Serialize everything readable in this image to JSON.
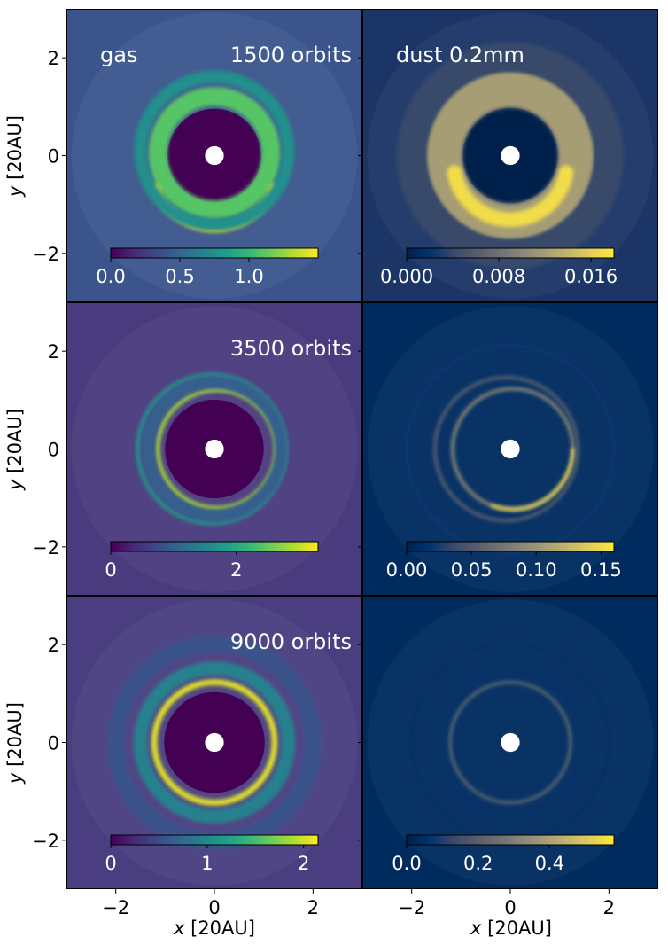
{
  "figure": {
    "xlabel_var": "x",
    "xlabel_unit": " [20AU]",
    "ylabel_var": "y",
    "ylabel_unit": " [20AU]",
    "xticks": [
      "−2",
      "0",
      "2"
    ],
    "yticks": [
      "2",
      "0",
      "−2"
    ]
  },
  "chart_data": [
    {
      "type": "heatmap",
      "panel": "gas-1500",
      "label": "gas",
      "time_label": "1500 orbits",
      "xlim": [
        -3,
        3
      ],
      "ylim": [
        -3,
        3
      ],
      "colormap": "viridis",
      "background": "#3b558c",
      "clim": [
        0,
        1.5
      ],
      "colorbar_ticks": [
        {
          "v": 0.0,
          "t": "0.0"
        },
        {
          "v": 0.5,
          "t": "0.5"
        },
        {
          "v": 1.0,
          "t": "1.0"
        }
      ],
      "features": [
        {
          "kind": "disk",
          "r": 0.95,
          "value": 0.0
        },
        {
          "kind": "ring",
          "r": 1.15,
          "width": 0.38,
          "value": 1.1,
          "cx": 0.0,
          "cy": 0.05
        },
        {
          "kind": "ring",
          "r": 1.28,
          "width": 0.16,
          "value": 1.45,
          "cx": 0.0,
          "cy": -0.2,
          "arc": [
            20,
            160
          ]
        },
        {
          "kind": "ring",
          "r": 1.5,
          "width": 0.25,
          "value": 0.75,
          "cx": 0.0,
          "cy": 0.1
        },
        {
          "kind": "hole",
          "r": 0.19
        }
      ]
    },
    {
      "type": "heatmap",
      "panel": "dust-1500",
      "label": "dust 0.2mm",
      "time_label": "",
      "xlim": [
        -3,
        3
      ],
      "ylim": [
        -3,
        3
      ],
      "colormap": "cividis",
      "background": "#1b3566",
      "clim": [
        0,
        0.018
      ],
      "colorbar_ticks": [
        {
          "v": 0.0,
          "t": "0.000"
        },
        {
          "v": 0.008,
          "t": "0.008"
        },
        {
          "v": 0.016,
          "t": "0.016"
        }
      ],
      "features": [
        {
          "kind": "disk",
          "r": 0.97,
          "value": 0.0
        },
        {
          "kind": "ring",
          "r": 1.35,
          "width": 0.75,
          "value": 0.012,
          "cx": 0.0,
          "cy": 0.0
        },
        {
          "kind": "ring",
          "r": 1.15,
          "width": 0.3,
          "value": 0.017,
          "cx": 0.0,
          "cy": -0.15,
          "arc": [
            10,
            170
          ]
        },
        {
          "kind": "ring",
          "r": 2.0,
          "width": 0.6,
          "value": 0.004,
          "cx": 0.0,
          "cy": 0.0
        },
        {
          "kind": "hole",
          "r": 0.19
        }
      ]
    },
    {
      "type": "heatmap",
      "panel": "gas-3500",
      "label": "",
      "time_label": "3500 orbits",
      "xlim": [
        -3,
        3
      ],
      "ylim": [
        -3,
        3
      ],
      "colormap": "viridis",
      "background": "#4a3a7e",
      "clim": [
        0,
        3.3
      ],
      "colorbar_ticks": [
        {
          "v": 0,
          "t": "0"
        },
        {
          "v": 2,
          "t": "2"
        }
      ],
      "features": [
        {
          "kind": "disk",
          "r": 1.0,
          "value": 0.0
        },
        {
          "kind": "ring",
          "r": 1.2,
          "width": 0.09,
          "value": 2.8,
          "cx": 0.05,
          "cy": 0.0
        },
        {
          "kind": "ring",
          "r": 1.5,
          "width": 0.09,
          "value": 1.7,
          "cx": -0.05,
          "cy": 0.0
        },
        {
          "kind": "ring",
          "r": 1.35,
          "width": 0.25,
          "value": 1.0,
          "cx": 0.0,
          "cy": 0.0
        },
        {
          "kind": "hole",
          "r": 0.19
        }
      ]
    },
    {
      "type": "heatmap",
      "panel": "dust-3500",
      "label": "",
      "time_label": "",
      "xlim": [
        -3,
        3
      ],
      "ylim": [
        -3,
        3
      ],
      "colormap": "cividis",
      "background": "#002b5f",
      "clim": [
        0,
        0.16
      ],
      "colorbar_ticks": [
        {
          "v": 0.0,
          "t": "0.00"
        },
        {
          "v": 0.05,
          "t": "0.05"
        },
        {
          "v": 0.1,
          "t": "0.10"
        },
        {
          "v": 0.15,
          "t": "0.15"
        }
      ],
      "features": [
        {
          "kind": "ring",
          "r": 1.22,
          "width": 0.06,
          "value": 0.1,
          "cx": 0.05,
          "cy": 0.0
        },
        {
          "kind": "ring",
          "r": 1.22,
          "width": 0.06,
          "value": 0.15,
          "cx": 0.05,
          "cy": 0.0,
          "arc": [
            0,
            110
          ]
        },
        {
          "kind": "ring",
          "r": 1.45,
          "width": 0.05,
          "value": 0.07,
          "cx": -0.08,
          "cy": 0.0
        },
        {
          "kind": "ring",
          "r": 2.1,
          "width": 0.07,
          "value": 0.02,
          "cx": 0.0,
          "cy": 0.0
        },
        {
          "kind": "ring",
          "r": 2.6,
          "width": 0.05,
          "value": 0.015,
          "cx": 0.0,
          "cy": 0.0
        },
        {
          "kind": "hole",
          "r": 0.19
        }
      ]
    },
    {
      "type": "heatmap",
      "panel": "gas-9000",
      "label": "",
      "time_label": "9000 orbits",
      "xlim": [
        -3,
        3
      ],
      "ylim": [
        -3,
        3
      ],
      "colormap": "viridis",
      "background": "#4a3e80",
      "clim": [
        0,
        2.15
      ],
      "colorbar_ticks": [
        {
          "v": 0,
          "t": "0"
        },
        {
          "v": 1,
          "t": "1"
        },
        {
          "v": 2,
          "t": "2"
        }
      ],
      "features": [
        {
          "kind": "disk",
          "r": 1.02,
          "value": 0.0
        },
        {
          "kind": "ring",
          "r": 1.22,
          "width": 0.12,
          "value": 2.05,
          "cx": 0.0,
          "cy": 0.0
        },
        {
          "kind": "ring",
          "r": 1.5,
          "width": 0.28,
          "value": 0.95,
          "cx": 0.0,
          "cy": 0.0
        },
        {
          "kind": "ring",
          "r": 2.0,
          "width": 0.35,
          "value": 0.55,
          "cx": 0.0,
          "cy": 0.0
        },
        {
          "kind": "hole",
          "r": 0.19
        }
      ]
    },
    {
      "type": "heatmap",
      "panel": "dust-9000",
      "label": "",
      "time_label": "",
      "xlim": [
        -3,
        3
      ],
      "ylim": [
        -3,
        3
      ],
      "colormap": "cividis",
      "background": "#002b5f",
      "clim": [
        0,
        0.58
      ],
      "colorbar_ticks": [
        {
          "v": 0.0,
          "t": "0.0"
        },
        {
          "v": 0.2,
          "t": "0.2"
        },
        {
          "v": 0.4,
          "t": "0.4"
        }
      ],
      "features": [
        {
          "kind": "ring",
          "r": 1.22,
          "width": 0.04,
          "value": 0.32,
          "cx": 0.0,
          "cy": 0.0
        },
        {
          "kind": "ring",
          "r": 1.5,
          "width": 0.05,
          "value": 0.06,
          "cx": 0.0,
          "cy": 0.0
        },
        {
          "kind": "ring",
          "r": 2.0,
          "width": 0.05,
          "value": 0.05,
          "cx": 0.0,
          "cy": 0.0
        },
        {
          "kind": "hole",
          "r": 0.19
        }
      ]
    }
  ]
}
